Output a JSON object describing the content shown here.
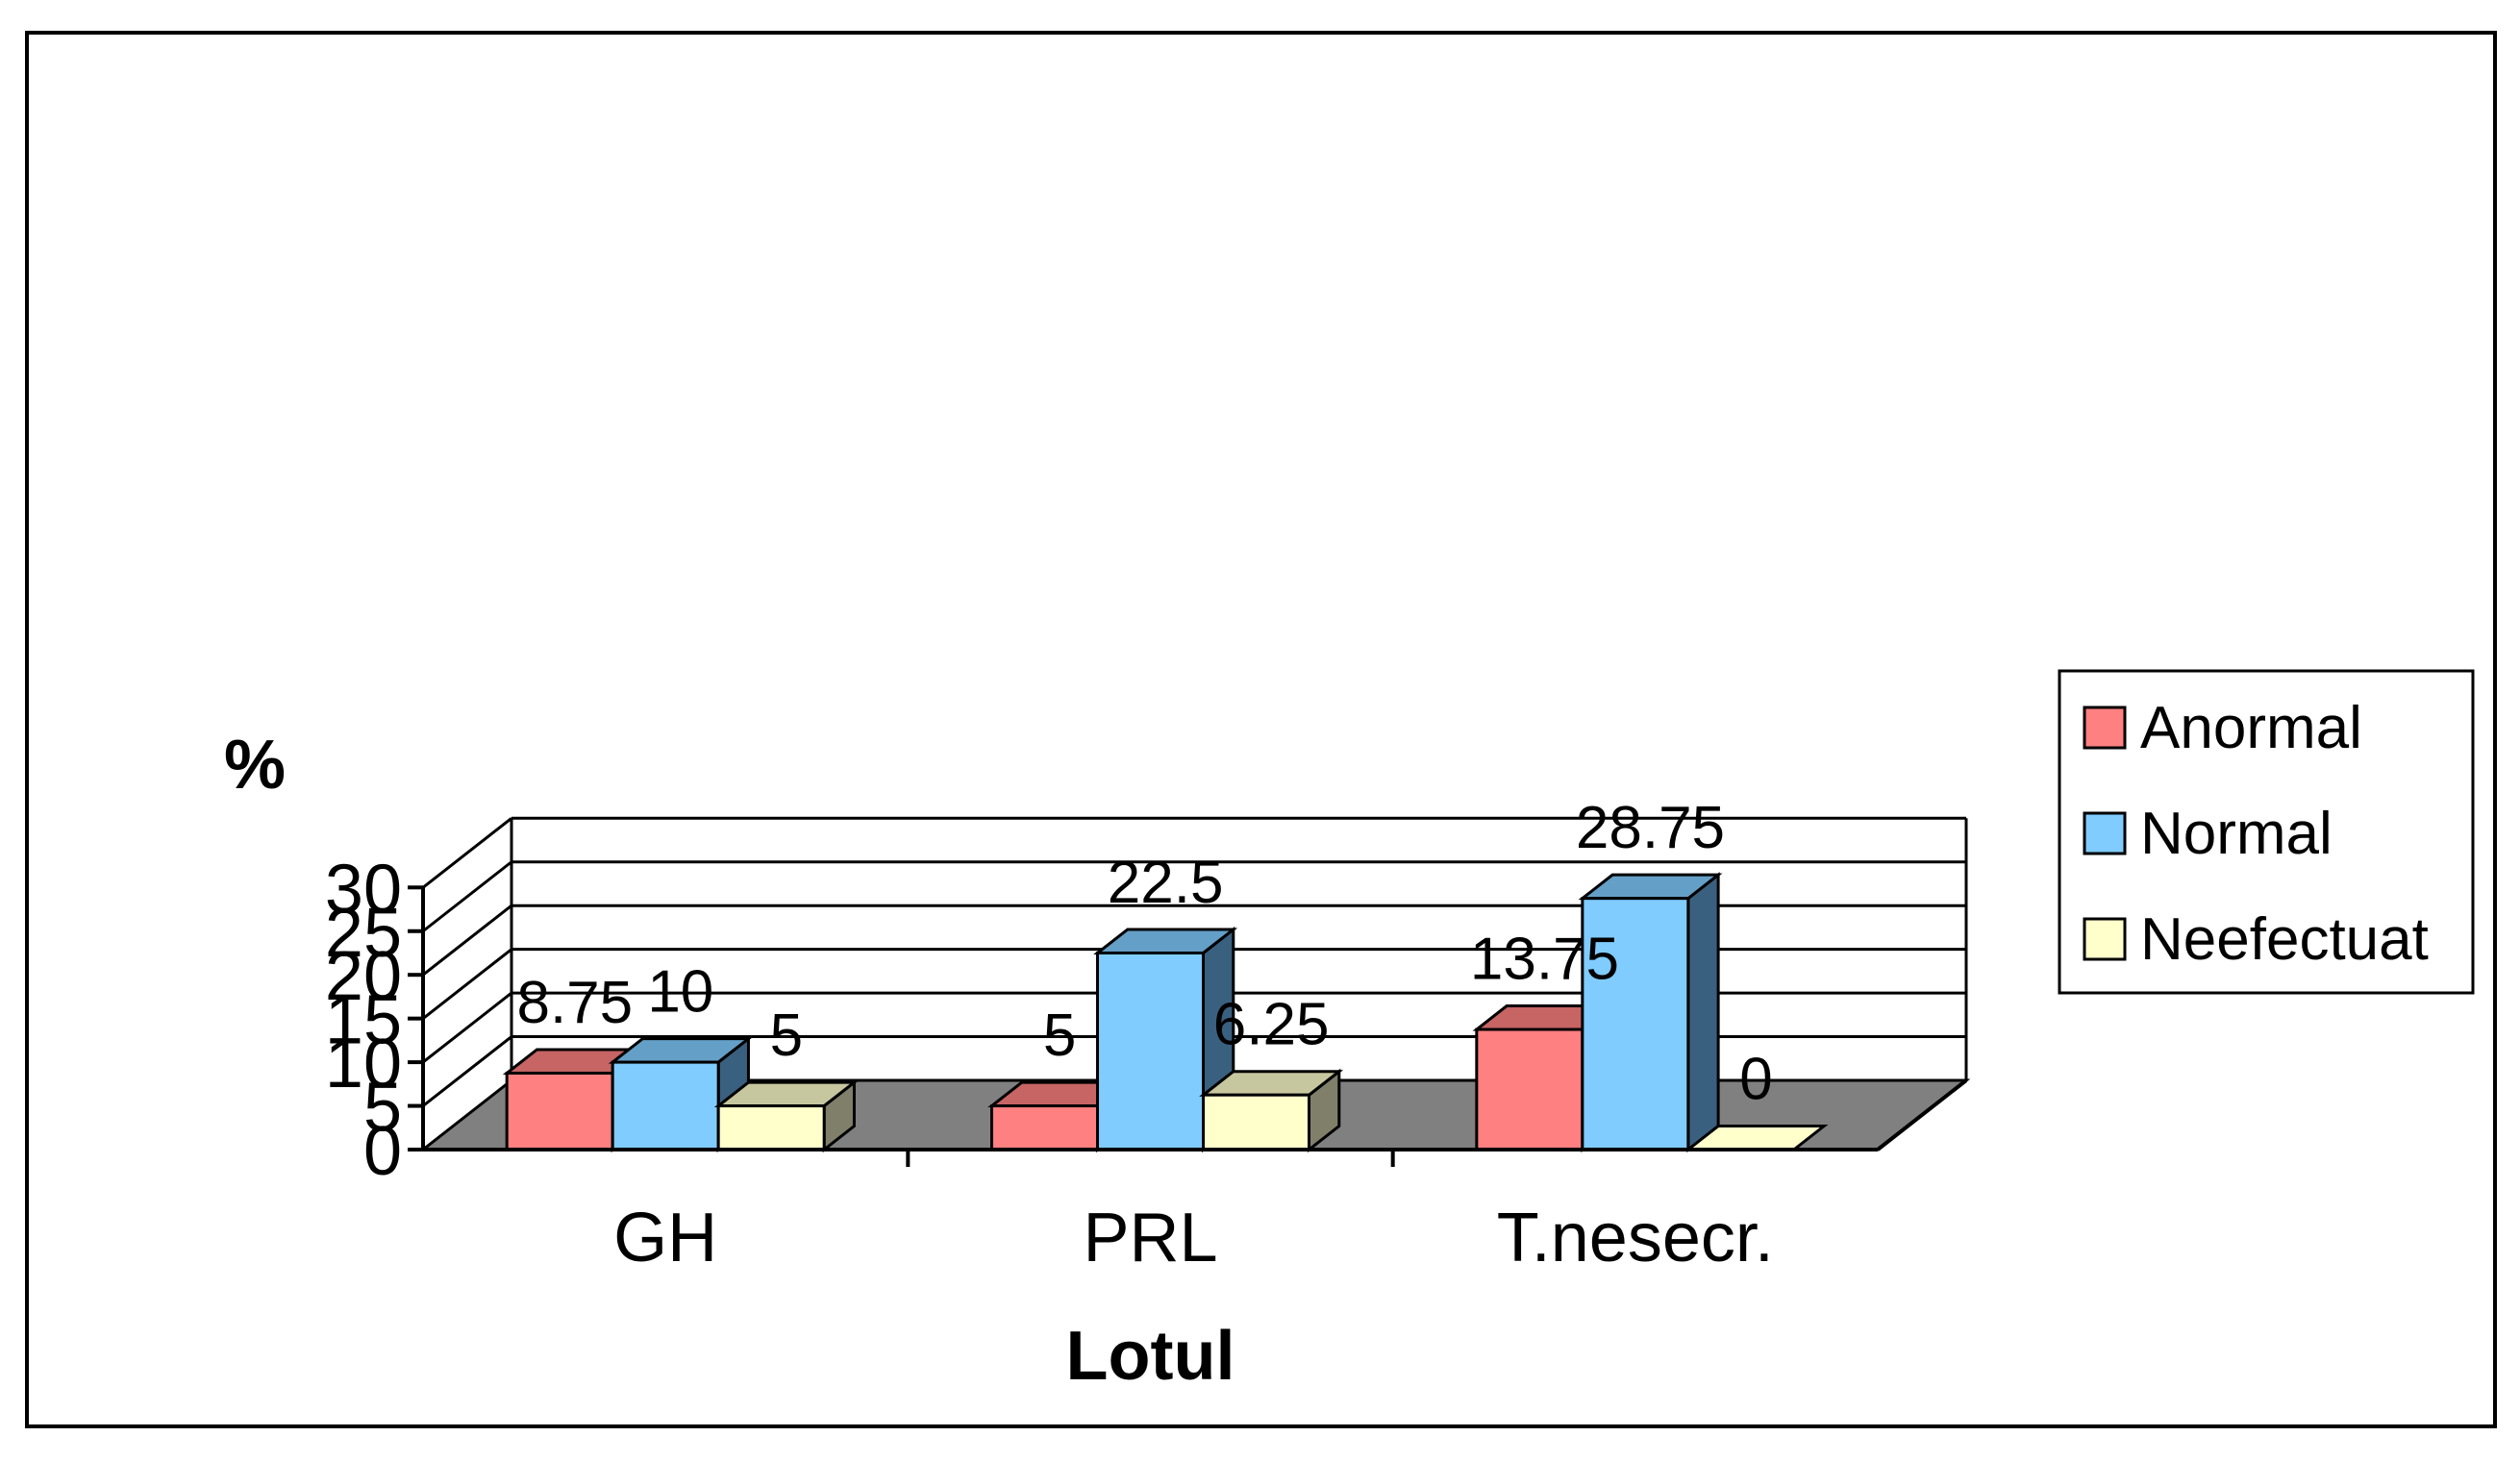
{
  "chart_data": {
    "type": "bar",
    "title": "",
    "xlabel": "Lotul",
    "ylabel": "%",
    "ylim": [
      0,
      30
    ],
    "yticks": [
      "0",
      "5",
      "10",
      "15",
      "20",
      "25",
      "30"
    ],
    "categories": [
      "GH",
      "PRL",
      "T.nesecr."
    ],
    "series": [
      {
        "name": "Anormal",
        "values": [
          8.75,
          5,
          13.75
        ],
        "labels": [
          "8.75",
          "5",
          "13.75"
        ],
        "color": "#ff8080",
        "side_color": "#c04040"
      },
      {
        "name": "Normal",
        "values": [
          10,
          22.5,
          28.75
        ],
        "labels": [
          "10",
          "22.5",
          "28.75"
        ],
        "color": "#80ccff",
        "side_color": "#3a6080"
      },
      {
        "name": "Neefectuat",
        "values": [
          5,
          6.25,
          0
        ],
        "labels": [
          "5",
          "6.25",
          "0"
        ],
        "color": "#ffffcc",
        "side_color": "#80806a"
      }
    ],
    "grid": true,
    "legend": "right",
    "three_d": true,
    "floor_color": "#808080"
  }
}
